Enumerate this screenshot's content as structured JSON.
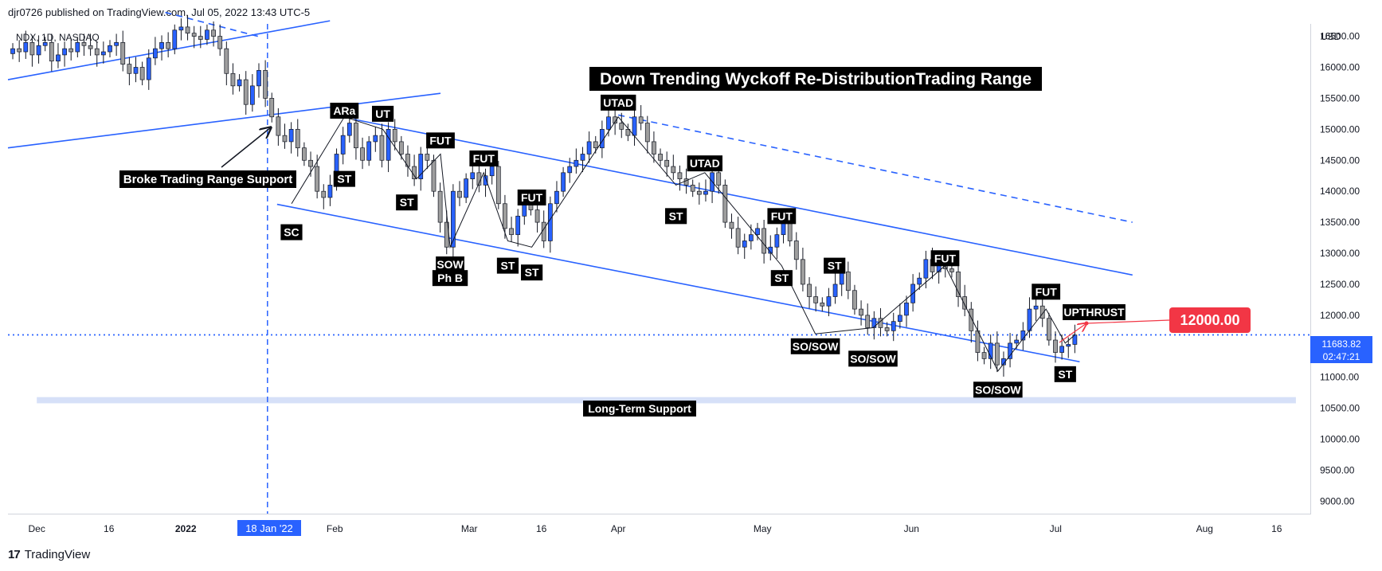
{
  "header": {
    "publisher_line": "djr0726 published on TradingView.com, Jul 05, 2022 13:43 UTC-5"
  },
  "footer": {
    "brand": "TradingView",
    "logo_glyph": "17"
  },
  "colors": {
    "up": "#2962ff",
    "down": "#9e9e9e",
    "channel": "#2962ff",
    "price_line": "#2962ff",
    "price_badge": "#2962ff",
    "target_badge": "#f23645",
    "support_band": "#d6e0f8",
    "label_bg": "#000000",
    "label_fg": "#ffffff"
  },
  "chart_data": {
    "type": "candlestick",
    "symbol_line": "NDX, 1D, NASDAQ",
    "currency": "USD",
    "title": "Down Trending Wyckoff Re-DistributionTrading Range",
    "y_range": [
      8800,
      16700
    ],
    "y_ticks": [
      "16500.00",
      "16000.00",
      "15500.00",
      "15000.00",
      "14500.00",
      "14000.00",
      "13500.00",
      "13000.00",
      "12500.00",
      "12000.00",
      "11500.00",
      "11000.00",
      "10500.00",
      "10000.00",
      "9500.00",
      "9000.00"
    ],
    "x_range": [
      "2021-11-25",
      "2022-08-23"
    ],
    "x_ticks": [
      {
        "date": "2021-12-01",
        "label": "Dec",
        "bold": false
      },
      {
        "date": "2021-12-16",
        "label": "16",
        "bold": false
      },
      {
        "date": "2022-01-01",
        "label": "2022",
        "bold": true
      },
      {
        "date": "2022-02-01",
        "label": "Feb",
        "bold": false
      },
      {
        "date": "2022-03-01",
        "label": "Mar",
        "bold": false
      },
      {
        "date": "2022-03-16",
        "label": "16",
        "bold": false
      },
      {
        "date": "2022-04-01",
        "label": "Apr",
        "bold": false
      },
      {
        "date": "2022-05-01",
        "label": "May",
        "bold": false
      },
      {
        "date": "2022-06-01",
        "label": "Jun",
        "bold": false
      },
      {
        "date": "2022-07-01",
        "label": "Jul",
        "bold": false
      },
      {
        "date": "2022-08-01",
        "label": "Aug",
        "bold": false
      },
      {
        "date": "2022-08-16",
        "label": "16",
        "bold": false
      }
    ],
    "vertical_marker": {
      "date": "2022-01-18",
      "label": "18 Jan '22"
    },
    "last_price": {
      "value": 11683.82,
      "label": "11683.82",
      "countdown": "02:47:21"
    },
    "target": {
      "value": 12000,
      "label": "12000.00",
      "from_date": "2022-07-06"
    },
    "support_zone": {
      "low": 10580,
      "high": 10680,
      "from": "2021-12-01",
      "to": "2022-08-20",
      "label": "Long-Term Support"
    },
    "closes": [
      16300,
      16250,
      16400,
      16200,
      16350,
      16400,
      16100,
      16200,
      16300,
      16250,
      16400,
      16350,
      16300,
      16200,
      16250,
      16350,
      16400,
      16050,
      15900,
      16000,
      15800,
      16150,
      16300,
      16400,
      16300,
      16600,
      16650,
      16550,
      16500,
      16450,
      16600,
      16500,
      16300,
      15900,
      15700,
      15800,
      15400,
      15700,
      15950,
      15500,
      15200,
      14900,
      14800,
      15000,
      14700,
      14500,
      14400,
      14000,
      13900,
      14100,
      14600,
      14900,
      15100,
      14700,
      14500,
      14800,
      14900,
      14500,
      15000,
      14800,
      14600,
      14400,
      14200,
      14600,
      14500,
      14000,
      13500,
      13100,
      14000,
      13900,
      14200,
      14300,
      14100,
      14250,
      14400,
      13800,
      13400,
      13300,
      13600,
      13800,
      13700,
      13500,
      13200,
      13800,
      14000,
      14300,
      14400,
      14500,
      14600,
      14800,
      14700,
      15000,
      15200,
      15100,
      15000,
      14900,
      15200,
      15100,
      14800,
      14600,
      14500,
      14400,
      14300,
      14200,
      14100,
      14000,
      13950,
      14000,
      14300,
      14100,
      13500,
      13400,
      13100,
      13200,
      13300,
      13400,
      13000,
      13100,
      13300,
      13500,
      13200,
      12900,
      12500,
      12300,
      12200,
      12150,
      12300,
      12500,
      12700,
      12400,
      12100,
      12000,
      11800,
      11950,
      11800,
      11750,
      11900,
      12000,
      12200,
      12500,
      12600,
      12900,
      12700,
      12800,
      12750,
      12700,
      12300,
      12100,
      11750,
      11400,
      11300,
      11550,
      11200,
      11300,
      11550,
      11600,
      11750,
      12100,
      12150,
      11950,
      11600,
      11400,
      11500,
      11530,
      11683
    ],
    "labels": [
      {
        "text": "ARa",
        "date": "2022-02-03",
        "value": 15300
      },
      {
        "text": "UT",
        "date": "2022-02-11",
        "value": 15250
      },
      {
        "text": "FUT",
        "date": "2022-02-23",
        "value": 14820
      },
      {
        "text": "FUT",
        "date": "2022-03-04",
        "value": 14530
      },
      {
        "text": "FUT",
        "date": "2022-03-14",
        "value": 13900
      },
      {
        "text": "UTAD",
        "date": "2022-04-01",
        "value": 15430
      },
      {
        "text": "UTAD",
        "date": "2022-04-19",
        "value": 14450
      },
      {
        "text": "FUT",
        "date": "2022-05-05",
        "value": 13600
      },
      {
        "text": "ST",
        "date": "2022-05-16",
        "value": 12800
      },
      {
        "text": "FUT",
        "date": "2022-06-08",
        "value": 12920
      },
      {
        "text": "FUT",
        "date": "2022-06-29",
        "value": 12380
      },
      {
        "text": "UPTHRUST",
        "date": "2022-07-09",
        "value": 12050
      },
      {
        "text": "ST",
        "date": "2022-02-03",
        "value": 14200
      },
      {
        "text": "ST",
        "date": "2022-02-16",
        "value": 13820
      },
      {
        "text": "SC",
        "date": "2022-01-23",
        "value": 13340
      },
      {
        "text": "SOW",
        "date": "2022-02-25",
        "value": 12820
      },
      {
        "text": "Ph B",
        "date": "2022-02-25",
        "value": 12600
      },
      {
        "text": "ST",
        "date": "2022-03-09",
        "value": 12800
      },
      {
        "text": "ST",
        "date": "2022-03-14",
        "value": 12690
      },
      {
        "text": "ST",
        "date": "2022-04-13",
        "value": 13600
      },
      {
        "text": "ST",
        "date": "2022-05-05",
        "value": 12600
      },
      {
        "text": "SO/SOW",
        "date": "2022-05-12",
        "value": 11500
      },
      {
        "text": "SO/SOW",
        "date": "2022-05-24",
        "value": 11300
      },
      {
        "text": "SO/SOW",
        "date": "2022-06-19",
        "value": 10800
      },
      {
        "text": "ST",
        "date": "2022-07-03",
        "value": 11050
      }
    ],
    "annotation": {
      "text": "Broke Trading Range Support",
      "date": "2021-12-27",
      "value": 14400
    }
  }
}
